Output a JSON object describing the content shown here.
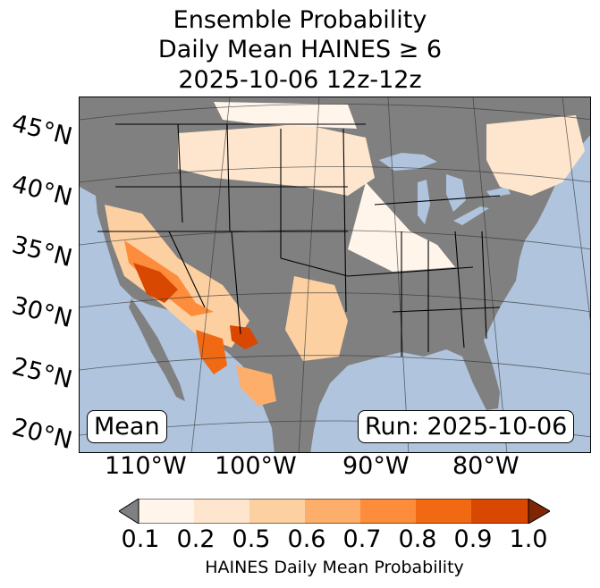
{
  "title": {
    "line1": "Ensemble Probability",
    "line2": "Daily Mean HAINES ≥ 6",
    "line3": "2025-10-06 12z-12z"
  },
  "map": {
    "lat_labels": [
      "45°N",
      "40°N",
      "35°N",
      "30°N",
      "25°N",
      "20°N"
    ],
    "lon_labels": [
      "110°W",
      "100°W",
      "90°W",
      "80°W"
    ],
    "ocean_color": "#b0c4de",
    "land_color": "#808080",
    "lake_color": "#b0c4de",
    "mean_label": "Mean",
    "run_label": "Run: 2025-10-06"
  },
  "colorbar": {
    "ticks": [
      "0.1",
      "0.2",
      "0.5",
      "0.6",
      "0.7",
      "0.8",
      "0.9",
      "1.0"
    ],
    "colors": [
      "#fff5eb",
      "#fee6ce",
      "#fdd0a2",
      "#fdae6b",
      "#fd8d3c",
      "#f16913",
      "#d94801"
    ],
    "under_color": "#808080",
    "over_color": "#7f2704",
    "label": "HAINES Daily Mean Probability"
  },
  "legend": {
    "levels": [
      "0.1",
      "0.2",
      "0.5",
      "0.6",
      "0.7",
      "0.8",
      "0.9",
      "1.0"
    ]
  }
}
